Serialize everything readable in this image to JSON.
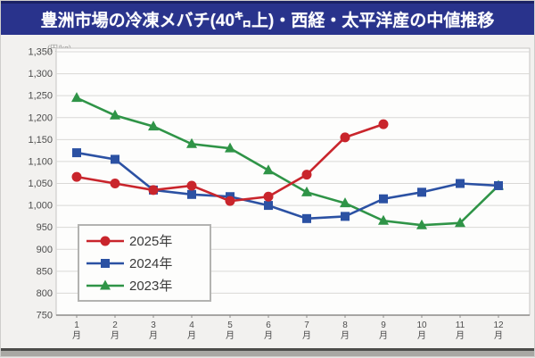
{
  "title": "豊洲市場の冷凍メバチ(40㌔上)・西経・太平洋産の中値推移",
  "y_axis": {
    "unit": "(円/kg)"
  },
  "chart_data": {
    "type": "line",
    "title": "豊洲市場の冷凍メバチ(40㌔上)・西経・太平洋産の中値推移",
    "xlabel": "",
    "ylabel": "(円/kg)",
    "categories": [
      "1月",
      "2月",
      "3月",
      "4月",
      "5月",
      "6月",
      "7月",
      "8月",
      "9月",
      "10月",
      "11月",
      "12月"
    ],
    "series": [
      {
        "name": "2025年",
        "color": "#c9252c",
        "marker": "circle",
        "values": [
          1065,
          1050,
          1035,
          1045,
          1010,
          1020,
          1070,
          1155,
          1185,
          null,
          null,
          null
        ]
      },
      {
        "name": "2024年",
        "color": "#2b51a3",
        "marker": "square",
        "values": [
          1120,
          1105,
          1035,
          1025,
          1020,
          1000,
          970,
          975,
          1015,
          1030,
          1050,
          1045
        ]
      },
      {
        "name": "2023年",
        "color": "#2f9447",
        "marker": "triangle",
        "values": [
          1245,
          1205,
          1180,
          1140,
          1130,
          1080,
          1030,
          1005,
          965,
          955,
          960,
          1045
        ]
      }
    ],
    "ylim": [
      750,
      1350
    ],
    "ytick_step": 50,
    "grid": true,
    "legend_position": "inside-bottom-left"
  },
  "colors": {
    "title_bg": "#29338c",
    "title_text": "#ffffff",
    "series_2025": "#c9252c",
    "series_2024": "#2b51a3",
    "series_2023": "#2f9447",
    "gridline": "#d9d8d6",
    "axis_text": "#4d4d4d",
    "plot_bg": "#fdfdfc"
  }
}
